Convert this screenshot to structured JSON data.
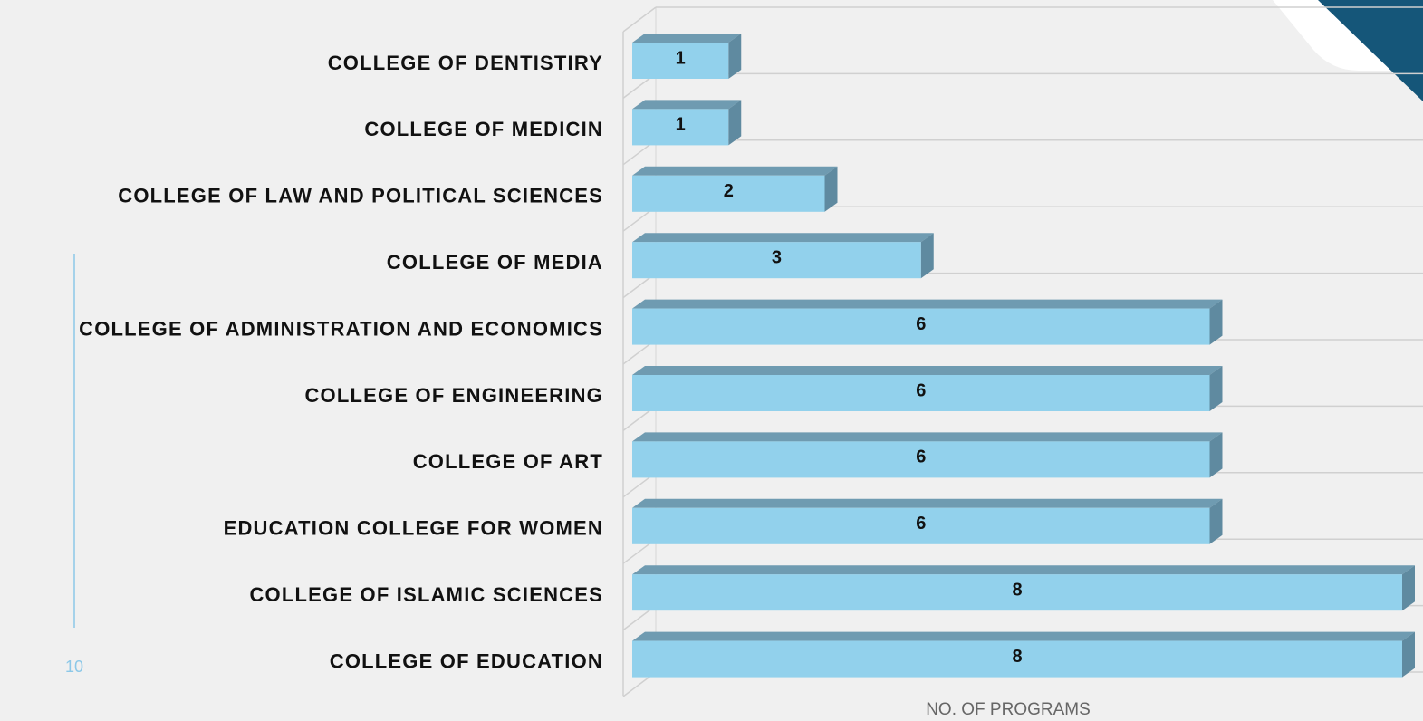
{
  "page_number": "10",
  "chart_data": {
    "type": "bar3d",
    "orientation": "horizontal",
    "x_axis_label": "NO. OF PROGRAMS",
    "categories": [
      "COLLEGE OF DENTISTIRY",
      "COLLEGE OF MEDICIN",
      "COLLEGE OF LAW AND POLITICAL SCIENCES",
      "COLLEGE OF MEDIA",
      "COLLEGE OF ADMINISTRATION AND ECONOMICS",
      "COLLEGE OF ENGINEERING",
      "COLLEGE OF ART",
      "EDUCATION COLLEGE FOR WOMEN",
      "COLLEGE OF ISLAMIC SCIENCES",
      "COLLEGE OF EDUCATION"
    ],
    "values": [
      1,
      1,
      2,
      3,
      6,
      6,
      6,
      6,
      8,
      8
    ],
    "color": "#92d1ec",
    "xlim": [
      0,
      8
    ],
    "grid": true
  }
}
